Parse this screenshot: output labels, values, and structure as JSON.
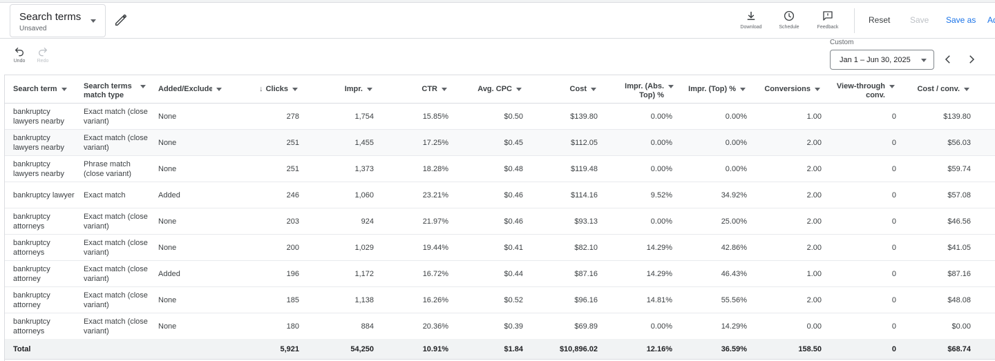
{
  "header": {
    "report_title": "Search terms",
    "report_status": "Unsaved",
    "tools": [
      {
        "label": "Download",
        "icon": "download-icon"
      },
      {
        "label": "Schedule",
        "icon": "clock-icon"
      },
      {
        "label": "Feedback",
        "icon": "feedback-icon"
      }
    ],
    "reset_label": "Reset",
    "save_label": "Save",
    "save_as_label": "Save as",
    "add_label": "Ad"
  },
  "toolbar": {
    "undo_label": "Undo",
    "redo_label": "Redo",
    "date_range_label": "Custom",
    "date_range_value": "Jan 1 – Jun 30, 2025"
  },
  "colors": {
    "accent": "#1a73e8",
    "disabled": "#bdc1c6",
    "border": "#dadce0"
  },
  "table": {
    "columns": [
      {
        "label": "Search term"
      },
      {
        "label": "Search terms match type"
      },
      {
        "label": "Added/Excluded"
      },
      {
        "label": "Clicks"
      },
      {
        "label": "Impr."
      },
      {
        "label": "CTR"
      },
      {
        "label": "Avg. CPC"
      },
      {
        "label": "Cost"
      },
      {
        "label": "Impr. (Abs. Top) %"
      },
      {
        "label": "Impr. (Top) %"
      },
      {
        "label": "Conversions"
      },
      {
        "label": "View-through conv."
      },
      {
        "label": "Cost / conv."
      }
    ],
    "rows": [
      [
        "bankruptcy lawyers nearby",
        "Exact match (close variant)",
        "None",
        "278",
        "1,754",
        "15.85%",
        "$0.50",
        "$139.80",
        "0.00%",
        "0.00%",
        "1.00",
        "0",
        "$139.80"
      ],
      [
        "bankruptcy lawyers nearby",
        "Exact match (close variant)",
        "None",
        "251",
        "1,455",
        "17.25%",
        "$0.45",
        "$112.05",
        "0.00%",
        "0.00%",
        "2.00",
        "0",
        "$56.03"
      ],
      [
        "bankruptcy lawyers nearby",
        "Phrase match (close variant)",
        "None",
        "251",
        "1,373",
        "18.28%",
        "$0.48",
        "$119.48",
        "0.00%",
        "0.00%",
        "2.00",
        "0",
        "$59.74"
      ],
      [
        "bankruptcy lawyer",
        "Exact match",
        "Added",
        "246",
        "1,060",
        "23.21%",
        "$0.46",
        "$114.16",
        "9.52%",
        "34.92%",
        "2.00",
        "0",
        "$57.08"
      ],
      [
        "bankruptcy attorneys",
        "Exact match (close variant)",
        "None",
        "203",
        "924",
        "21.97%",
        "$0.46",
        "$93.13",
        "0.00%",
        "25.00%",
        "2.00",
        "0",
        "$46.56"
      ],
      [
        "bankruptcy attorneys",
        "Exact match (close variant)",
        "None",
        "200",
        "1,029",
        "19.44%",
        "$0.41",
        "$82.10",
        "14.29%",
        "42.86%",
        "2.00",
        "0",
        "$41.05"
      ],
      [
        "bankruptcy attorney",
        "Exact match (close variant)",
        "Added",
        "196",
        "1,172",
        "16.72%",
        "$0.44",
        "$87.16",
        "14.29%",
        "46.43%",
        "1.00",
        "0",
        "$87.16"
      ],
      [
        "bankruptcy attorney",
        "Exact match (close variant)",
        "None",
        "185",
        "1,138",
        "16.26%",
        "$0.52",
        "$96.16",
        "14.81%",
        "55.56%",
        "2.00",
        "0",
        "$48.08"
      ],
      [
        "bankruptcy attorneys",
        "Exact match (close variant)",
        "None",
        "180",
        "884",
        "20.36%",
        "$0.39",
        "$69.89",
        "0.00%",
        "14.29%",
        "0.00",
        "0",
        "$0.00"
      ]
    ],
    "total": {
      "label": "Total",
      "values": [
        "5,921",
        "54,250",
        "10.91%",
        "$1.84",
        "$10,896.02",
        "12.16%",
        "36.59%",
        "158.50",
        "0",
        "$68.74"
      ]
    }
  }
}
